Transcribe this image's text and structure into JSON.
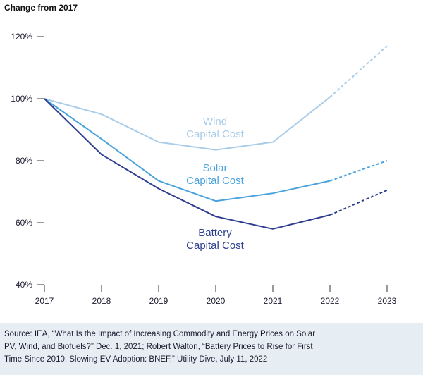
{
  "chart_data": {
    "type": "line",
    "title": "Change from 2017",
    "categories": [
      "2017",
      "2018",
      "2019",
      "2020",
      "2021",
      "2022",
      "2023"
    ],
    "y_ticks": [
      "40%",
      "60%",
      "80%",
      "100%",
      "120%"
    ],
    "ylim": [
      40,
      122
    ],
    "grid": false,
    "series": [
      {
        "name_lines": [
          "Wind",
          "Capital Cost"
        ],
        "color": "#a9cce8",
        "values": [
          100,
          95,
          86,
          83.5,
          86,
          100.5,
          117
        ],
        "dashed_from_index": 5
      },
      {
        "name_lines": [
          "Solar",
          "Capital Cost"
        ],
        "color": "#4aa3dd",
        "values": [
          100,
          87,
          73.5,
          67,
          69.5,
          73.5,
          80
        ],
        "dashed_from_index": 5
      },
      {
        "name_lines": [
          "Battery",
          "Capital Cost"
        ],
        "color": "#2e3f8f",
        "values": [
          100,
          82,
          71,
          62,
          58,
          62.5,
          70.5
        ],
        "dashed_from_index": 5
      }
    ]
  },
  "source": {
    "lines": [
      "Source: IEA, “What Is the Impact of Increasing Commodity and Energy Prices on Solar",
      "PV, Wind, and Biofuels?” Dec. 1, 2021; Robert Walton, “Battery Prices to Rise for First",
      "Time Since 2010, Slowing EV Adoption: BNEF,” Utility Dive, July 11, 2022"
    ]
  }
}
